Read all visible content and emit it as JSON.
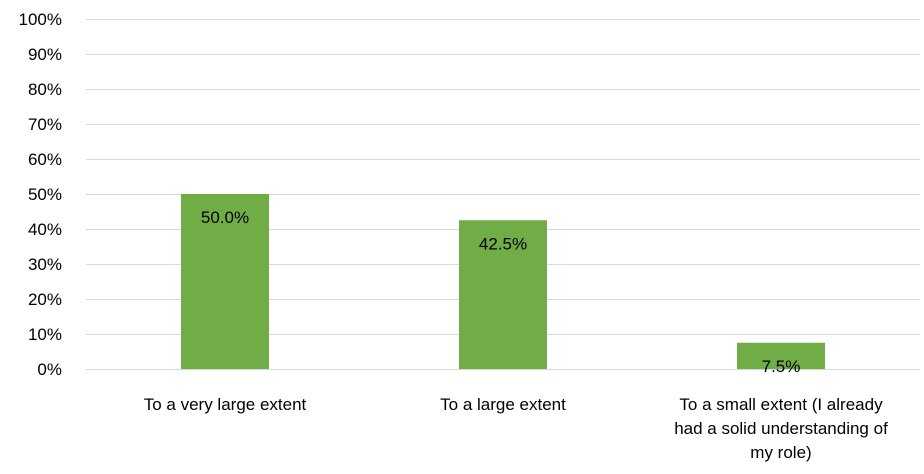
{
  "chart_data": {
    "type": "bar",
    "categories": [
      [
        "To a very large extent"
      ],
      [
        "To a large extent"
      ],
      [
        "To a small extent (I already",
        "had a solid understanding of",
        "my role)"
      ]
    ],
    "values": [
      50.0,
      42.5,
      7.5
    ],
    "data_labels": [
      "50.0%",
      "42.5%",
      "7.5%"
    ],
    "ylim": [
      0,
      100
    ],
    "yticks": [
      0,
      10,
      20,
      30,
      40,
      50,
      60,
      70,
      80,
      90,
      100
    ],
    "ytick_labels": [
      "0%",
      "10%",
      "20%",
      "30%",
      "40%",
      "50%",
      "60%",
      "70%",
      "80%",
      "90%",
      "100%"
    ],
    "bar_color": "#70ad47",
    "grid": true,
    "legend": "none"
  }
}
